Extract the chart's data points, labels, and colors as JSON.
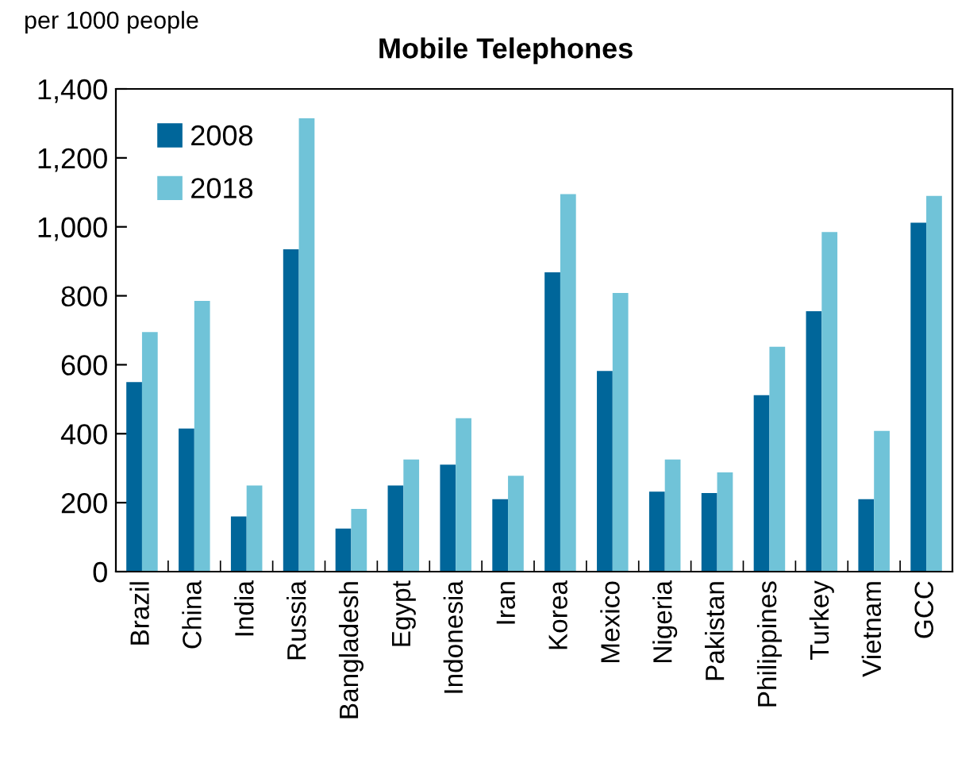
{
  "chart_data": {
    "type": "bar",
    "title": "Mobile Telephones",
    "annotations": [
      "per 1000 people"
    ],
    "categories": [
      "Brazil",
      "China",
      "India",
      "Russia",
      "Bangladesh",
      "Egypt",
      "Indonesia",
      "Iran",
      "Korea",
      "Mexico",
      "Nigeria",
      "Pakistan",
      "Philippines",
      "Turkey",
      "Vietnam",
      "GCC"
    ],
    "series": [
      {
        "name": "2008",
        "color": "#00669a",
        "values": [
          550,
          415,
          160,
          935,
          125,
          250,
          310,
          210,
          868,
          582,
          232,
          228,
          512,
          755,
          210,
          1012
        ]
      },
      {
        "name": "2018",
        "color": "#70c3d8",
        "values": [
          695,
          785,
          250,
          1315,
          182,
          325,
          445,
          278,
          1095,
          808,
          325,
          288,
          652,
          985,
          408,
          1090
        ]
      }
    ],
    "ylim": [
      0,
      1400
    ],
    "yticks": [
      {
        "value": 0,
        "label": "0"
      },
      {
        "value": 200,
        "label": "200"
      },
      {
        "value": 400,
        "label": "400"
      },
      {
        "value": 600,
        "label": "600"
      },
      {
        "value": 800,
        "label": "800"
      },
      {
        "value": 1000,
        "label": "1,000"
      },
      {
        "value": 1200,
        "label": "1,200"
      },
      {
        "value": 1400,
        "label": "1,400"
      }
    ],
    "grid": false,
    "legend": "top left"
  }
}
